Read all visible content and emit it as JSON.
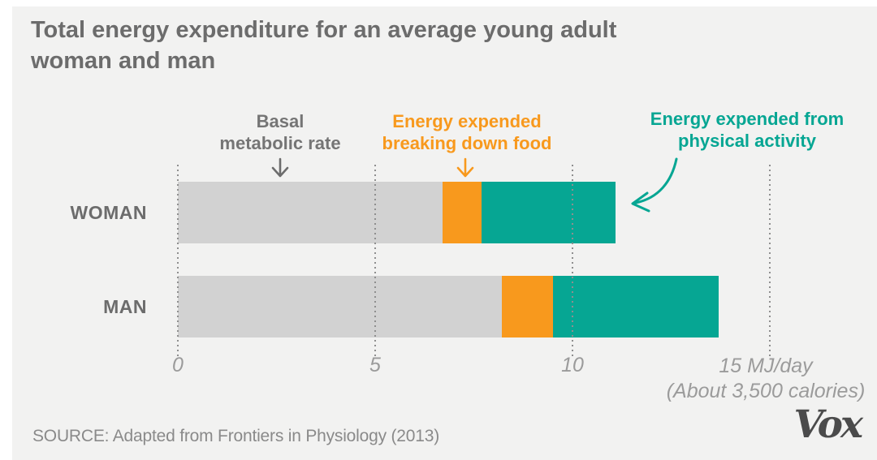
{
  "page": {
    "background_color": "#f2f2f1",
    "title_line1": "Total energy expenditure for an average young adult",
    "title_line2": "woman and man"
  },
  "legend": {
    "bmr": {
      "line1": "Basal",
      "line2": "metabolic rate",
      "color": "#757575",
      "icon": "arrow-down"
    },
    "food": {
      "line1": "Energy expended",
      "line2": "breaking down food",
      "color": "#f8991d",
      "icon": "arrow-down"
    },
    "activity": {
      "line1": "Energy expended from",
      "line2": "physical activity",
      "color": "#06a693",
      "icon": "curved-arrow-left"
    }
  },
  "chart_data": {
    "type": "bar",
    "orientation": "horizontal",
    "stacked": true,
    "title": "Total energy expenditure for an average young adult woman and man",
    "categories": [
      "WOMAN",
      "MAN"
    ],
    "series": [
      {
        "key": "bmr",
        "name": "Basal metabolic rate",
        "color": "#d2d2d2",
        "values": [
          6.7,
          8.2
        ]
      },
      {
        "key": "food",
        "name": "Energy expended breaking down food",
        "color": "#f8991d",
        "values": [
          1.0,
          1.3
        ]
      },
      {
        "key": "activity",
        "name": "Energy expended from physical activity",
        "color": "#06a693",
        "values": [
          3.4,
          4.2
        ]
      }
    ],
    "totals_mj_per_day": [
      11.1,
      13.7
    ],
    "x_axis": {
      "unit": "MJ/day",
      "range": [
        0,
        15
      ],
      "ticks": [
        0,
        5,
        10,
        15
      ],
      "plain_tick_labels": [
        "0",
        "5",
        "10"
      ],
      "last_tick_label": "15 MJ/day",
      "note": "(About 3,500 calories)",
      "gridlines": "dotted"
    },
    "legend_position": "above-chart"
  },
  "footer": {
    "source": "SOURCE: Adapted from Frontiers in Physiology (2013)",
    "logo": "Vox"
  }
}
